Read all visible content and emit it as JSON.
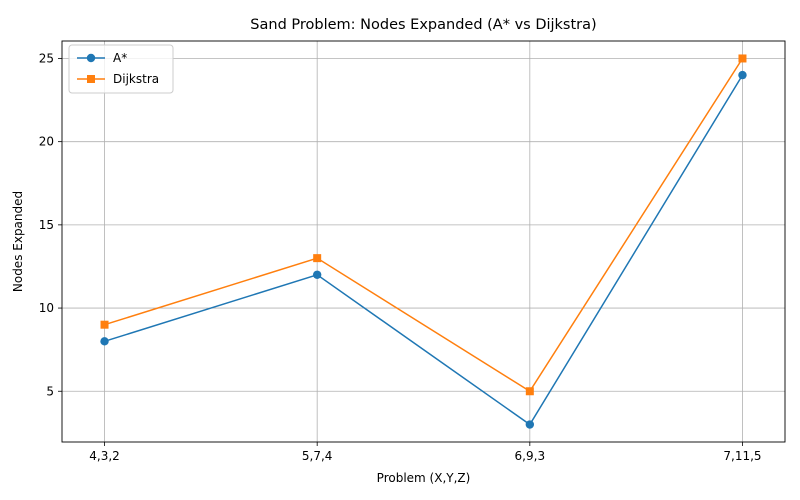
{
  "chart_data": {
    "type": "line",
    "title": "Sand Problem: Nodes Expanded (A* vs Dijkstra)",
    "xlabel": "Problem (X,Y,Z)",
    "ylabel": "Nodes Expanded",
    "categories": [
      "4,3,2",
      "5,7,4",
      "6,9,3",
      "7,11,5"
    ],
    "ylim": [
      1.95,
      26.05
    ],
    "yticks": [
      5,
      10,
      15,
      20,
      25
    ],
    "grid": true,
    "legend_position": "top-left",
    "series": [
      {
        "name": "A*",
        "values": [
          8,
          12,
          3,
          24
        ],
        "color": "#1f77b4",
        "marker": "circle"
      },
      {
        "name": "Dijkstra",
        "values": [
          9,
          13,
          5,
          25
        ],
        "color": "#ff7f0e",
        "marker": "square"
      }
    ]
  }
}
